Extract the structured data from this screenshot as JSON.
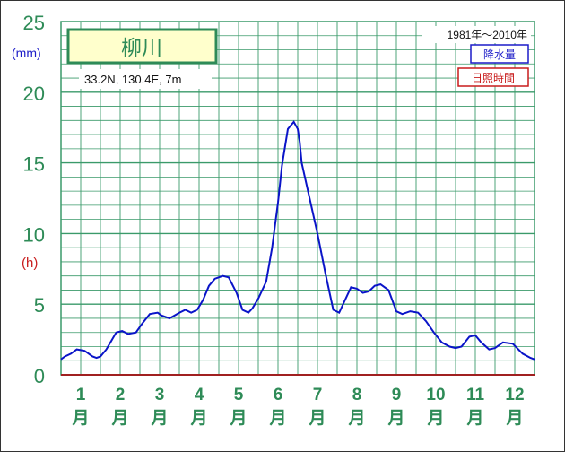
{
  "chart_data": {
    "type": "line",
    "station": "柳川",
    "location": "33.2N,  130.4E,  7m",
    "period": "1981年〜2010年",
    "legend": [
      "降水量",
      "日照時間"
    ],
    "y_unit_left": "(mm)",
    "y_unit_right": "(h)",
    "ylim": [
      0,
      25
    ],
    "y_ticks": [
      "0",
      "5",
      "10",
      "15",
      "20",
      "25"
    ],
    "months": [
      "1",
      "2",
      "3",
      "4",
      "5",
      "6",
      "7",
      "8",
      "9",
      "10",
      "11",
      "12"
    ],
    "month_suffix": "月",
    "grid": true,
    "colors": {
      "precip_line": "#0a14c8",
      "grid": "#3a9a6a",
      "axis_labels": "#2e8b57",
      "sunshine": "#c81c1c"
    },
    "series": [
      {
        "name": "降水量",
        "x": [
          0.0,
          0.1,
          0.25,
          0.4,
          0.6,
          0.8,
          0.9,
          1.0,
          1.15,
          1.4,
          1.55,
          1.7,
          1.9,
          2.05,
          2.25,
          2.45,
          2.55,
          2.75,
          3.0,
          3.15,
          3.3,
          3.45,
          3.6,
          3.75,
          3.9,
          4.1,
          4.25,
          4.45,
          4.6,
          4.75,
          4.85,
          5.0,
          5.2,
          5.35,
          5.5,
          5.6,
          5.75,
          5.9,
          6.0,
          6.05,
          6.1,
          6.3,
          6.5,
          6.7,
          6.9,
          7.05,
          7.2,
          7.35,
          7.5,
          7.65,
          7.8,
          7.95,
          8.1,
          8.3,
          8.5,
          8.65,
          8.85,
          9.05,
          9.25,
          9.45,
          9.65,
          9.85,
          10.0,
          10.15,
          10.35,
          10.5,
          10.65,
          10.85,
          11.0,
          11.2,
          11.45,
          11.7,
          11.9,
          12.0
        ],
        "y": [
          1.1,
          1.3,
          1.5,
          1.8,
          1.7,
          1.3,
          1.2,
          1.3,
          1.8,
          3.0,
          3.1,
          2.9,
          3.0,
          3.6,
          4.3,
          4.4,
          4.2,
          4.0,
          4.4,
          4.6,
          4.4,
          4.6,
          5.3,
          6.3,
          6.8,
          7.0,
          6.9,
          5.8,
          4.6,
          4.4,
          4.7,
          5.4,
          6.6,
          9.0,
          12.2,
          14.8,
          17.4,
          17.9,
          17.4,
          16.5,
          15.0,
          12.5,
          10.0,
          7.2,
          4.6,
          4.4,
          5.3,
          6.2,
          6.1,
          5.8,
          5.9,
          6.3,
          6.4,
          6.0,
          4.5,
          4.3,
          4.5,
          4.4,
          3.8,
          3.0,
          2.3,
          2.0,
          1.9,
          2.0,
          2.7,
          2.8,
          2.3,
          1.8,
          1.9,
          2.3,
          2.2,
          1.5,
          1.2,
          1.1
        ]
      }
    ]
  }
}
